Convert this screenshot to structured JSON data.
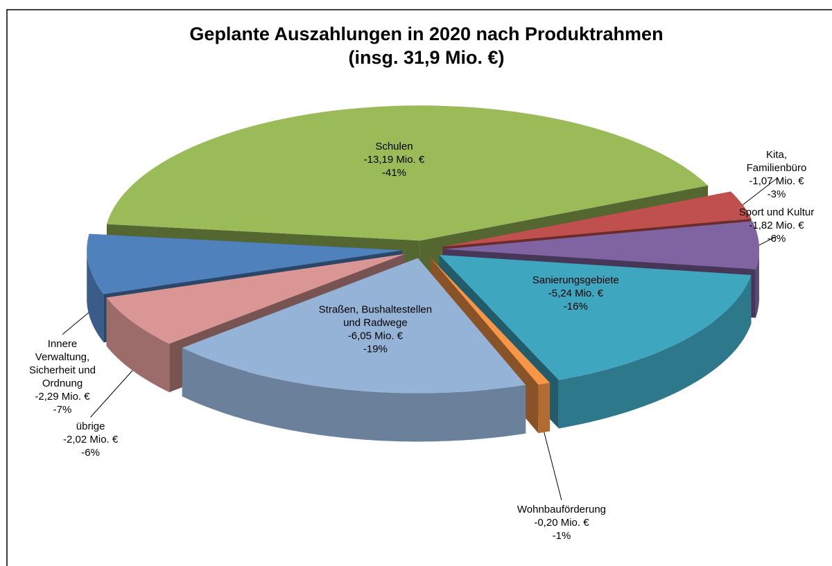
{
  "chart_data": {
    "type": "pie",
    "title": "Geplante Auszahlungen in 2020 nach Produktrahmen",
    "subtitle": "(insg. 31,9 Mio. €)",
    "categories": [
      "Schulen",
      "Kita, Familienbüro",
      "Sport und Kultur",
      "Sanierungsgebiete",
      "Wohnbauförderung",
      "Straßen, Bushaltestellen und Radwege",
      "übrige",
      "Innere Verwaltung, Sicherheit und Ordnung"
    ],
    "values": [
      -13.19,
      -1.07,
      -1.82,
      -5.24,
      -0.2,
      -6.05,
      -2.02,
      -2.29
    ],
    "value_labels": [
      "-13,19 Mio. €",
      "-1,07 Mio. €",
      "-1,82 Mio. €",
      "-5,24 Mio. €",
      "-0,20 Mio. €",
      "-6,05 Mio. €",
      "-2,02 Mio. €",
      "-2,29 Mio. €"
    ],
    "percent_labels": [
      "-41%",
      "-3%",
      "-6%",
      "-16%",
      "-1%",
      "-19%",
      "-6%",
      "-7%"
    ],
    "colors": [
      "#9bbb59",
      "#c0504d",
      "#8064a2",
      "#3ea6bf",
      "#f79646",
      "#95b3d7",
      "#d99694",
      "#4f81bd"
    ]
  }
}
